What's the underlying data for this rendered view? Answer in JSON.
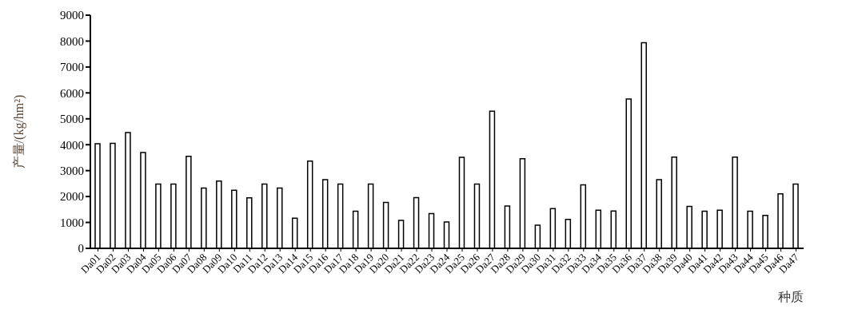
{
  "chart_data": {
    "type": "bar",
    "ylabel": "产量/(kg/hm²)",
    "xlabel": "种质",
    "categories": [
      "Da01",
      "Da02",
      "Da03",
      "Da04",
      "Da05",
      "Da06",
      "Da07",
      "Da08",
      "Da09",
      "Da10",
      "Da11",
      "Da12",
      "Da13",
      "Da14",
      "Da15",
      "Da16",
      "Da17",
      "Da18",
      "Da19",
      "Da20",
      "Da21",
      "Da22",
      "Da23",
      "Da24",
      "Da25",
      "Da26",
      "Da27",
      "Da28",
      "Da29",
      "Da30",
      "Da31",
      "Da32",
      "Da33",
      "Da34",
      "Da35",
      "Da36",
      "Da37",
      "Da38",
      "Da39",
      "Da40",
      "Da41",
      "Da42",
      "Da43",
      "Da44",
      "Da45",
      "Da46",
      "Da47"
    ],
    "values": [
      4040,
      4050,
      4470,
      3700,
      2480,
      2480,
      3550,
      2330,
      2600,
      2240,
      1950,
      2480,
      2330,
      1160,
      3370,
      2650,
      2480,
      1430,
      2480,
      1770,
      1080,
      1960,
      1340,
      1020,
      3510,
      2480,
      5290,
      1630,
      3460,
      890,
      1530,
      1120,
      2450,
      1470,
      1440,
      5760,
      7940,
      2650,
      3520,
      1620,
      1430,
      1470,
      3520,
      1430,
      1270,
      2100,
      2480
    ],
    "color": "#ffffff",
    "ylim": [
      0,
      9000
    ],
    "yticks": [
      0,
      1000,
      2000,
      3000,
      4000,
      5000,
      6000,
      7000,
      8000,
      9000
    ],
    "grid": false,
    "legend": false
  }
}
